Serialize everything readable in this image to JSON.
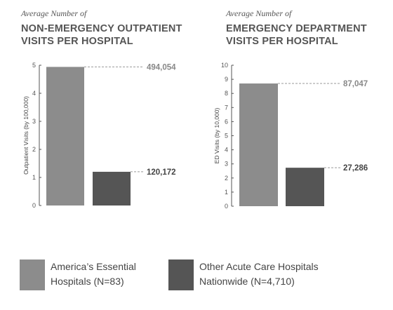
{
  "chart_data": [
    {
      "type": "bar",
      "title_pre": "Average Number of",
      "title_line1": "NON-EMERGENCY OUTPATIENT",
      "title_line2": "VISITS PER HOSPITAL",
      "ylabel": "Outpatient Visits (by 100,000)",
      "ylim": [
        0,
        5
      ],
      "yticks": [
        0,
        1,
        2,
        3,
        4,
        5
      ],
      "series": [
        {
          "name": "America's Essential Hospitals (N=83)",
          "value": 4.94054,
          "label": "494,054"
        },
        {
          "name": "Other Acute Care Hospitals Nationwide (N=4,710)",
          "value": 1.20172,
          "label": "120,172"
        }
      ]
    },
    {
      "type": "bar",
      "title_pre": "Average Number of",
      "title_line1": "EMERGENCY DEPARTMENT",
      "title_line2": "VISITS PER HOSPITAL",
      "ylabel": "ED Visits (by 10,000)",
      "ylim": [
        0,
        10
      ],
      "yticks": [
        0,
        1,
        2,
        3,
        4,
        5,
        6,
        7,
        8,
        9,
        10
      ],
      "series": [
        {
          "name": "America's Essential Hospitals (N=83)",
          "value": 8.7047,
          "label": "87,047"
        },
        {
          "name": "Other Acute Care Hospitals Nationwide (N=4,710)",
          "value": 2.7286,
          "label": "27,286"
        }
      ]
    }
  ],
  "legend": [
    {
      "line1": "America’s Essential",
      "line2": "Hospitals (N=83)",
      "color": "#8c8c8c"
    },
    {
      "line1": "Other Acute Care Hospitals",
      "line2": "Nationwide (N=4,710)",
      "color": "#555555"
    }
  ],
  "colors": {
    "bar1": "#8c8c8c",
    "bar2": "#555555",
    "bar1_label": "#888888",
    "bar2_label": "#444444",
    "axis": "#555555"
  }
}
